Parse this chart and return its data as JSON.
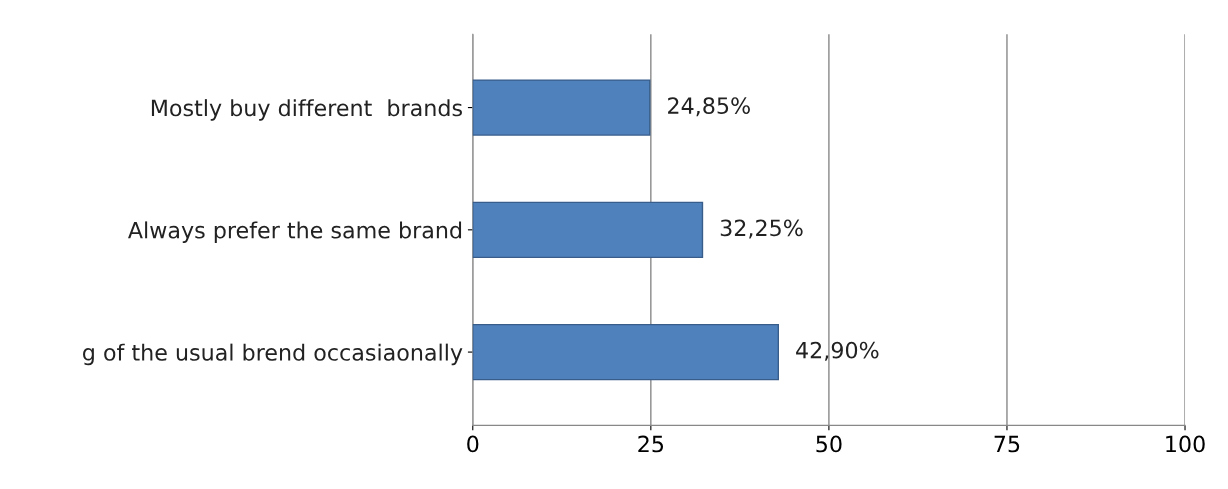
{
  "chart_data": {
    "type": "bar",
    "orientation": "horizontal",
    "categories": [
      "Mostly buy different  brands",
      "Always prefer the same brand",
      "g of the usual brend occasiaonally"
    ],
    "values": [
      24.85,
      32.25,
      42.9
    ],
    "value_labels": [
      "24,85%",
      "32,25%",
      "42,90%"
    ],
    "color": "#4f81bd",
    "xlim": [
      0,
      100
    ],
    "xticks": [
      0,
      25,
      50,
      75,
      100
    ],
    "grid": "x",
    "legend": false
  }
}
